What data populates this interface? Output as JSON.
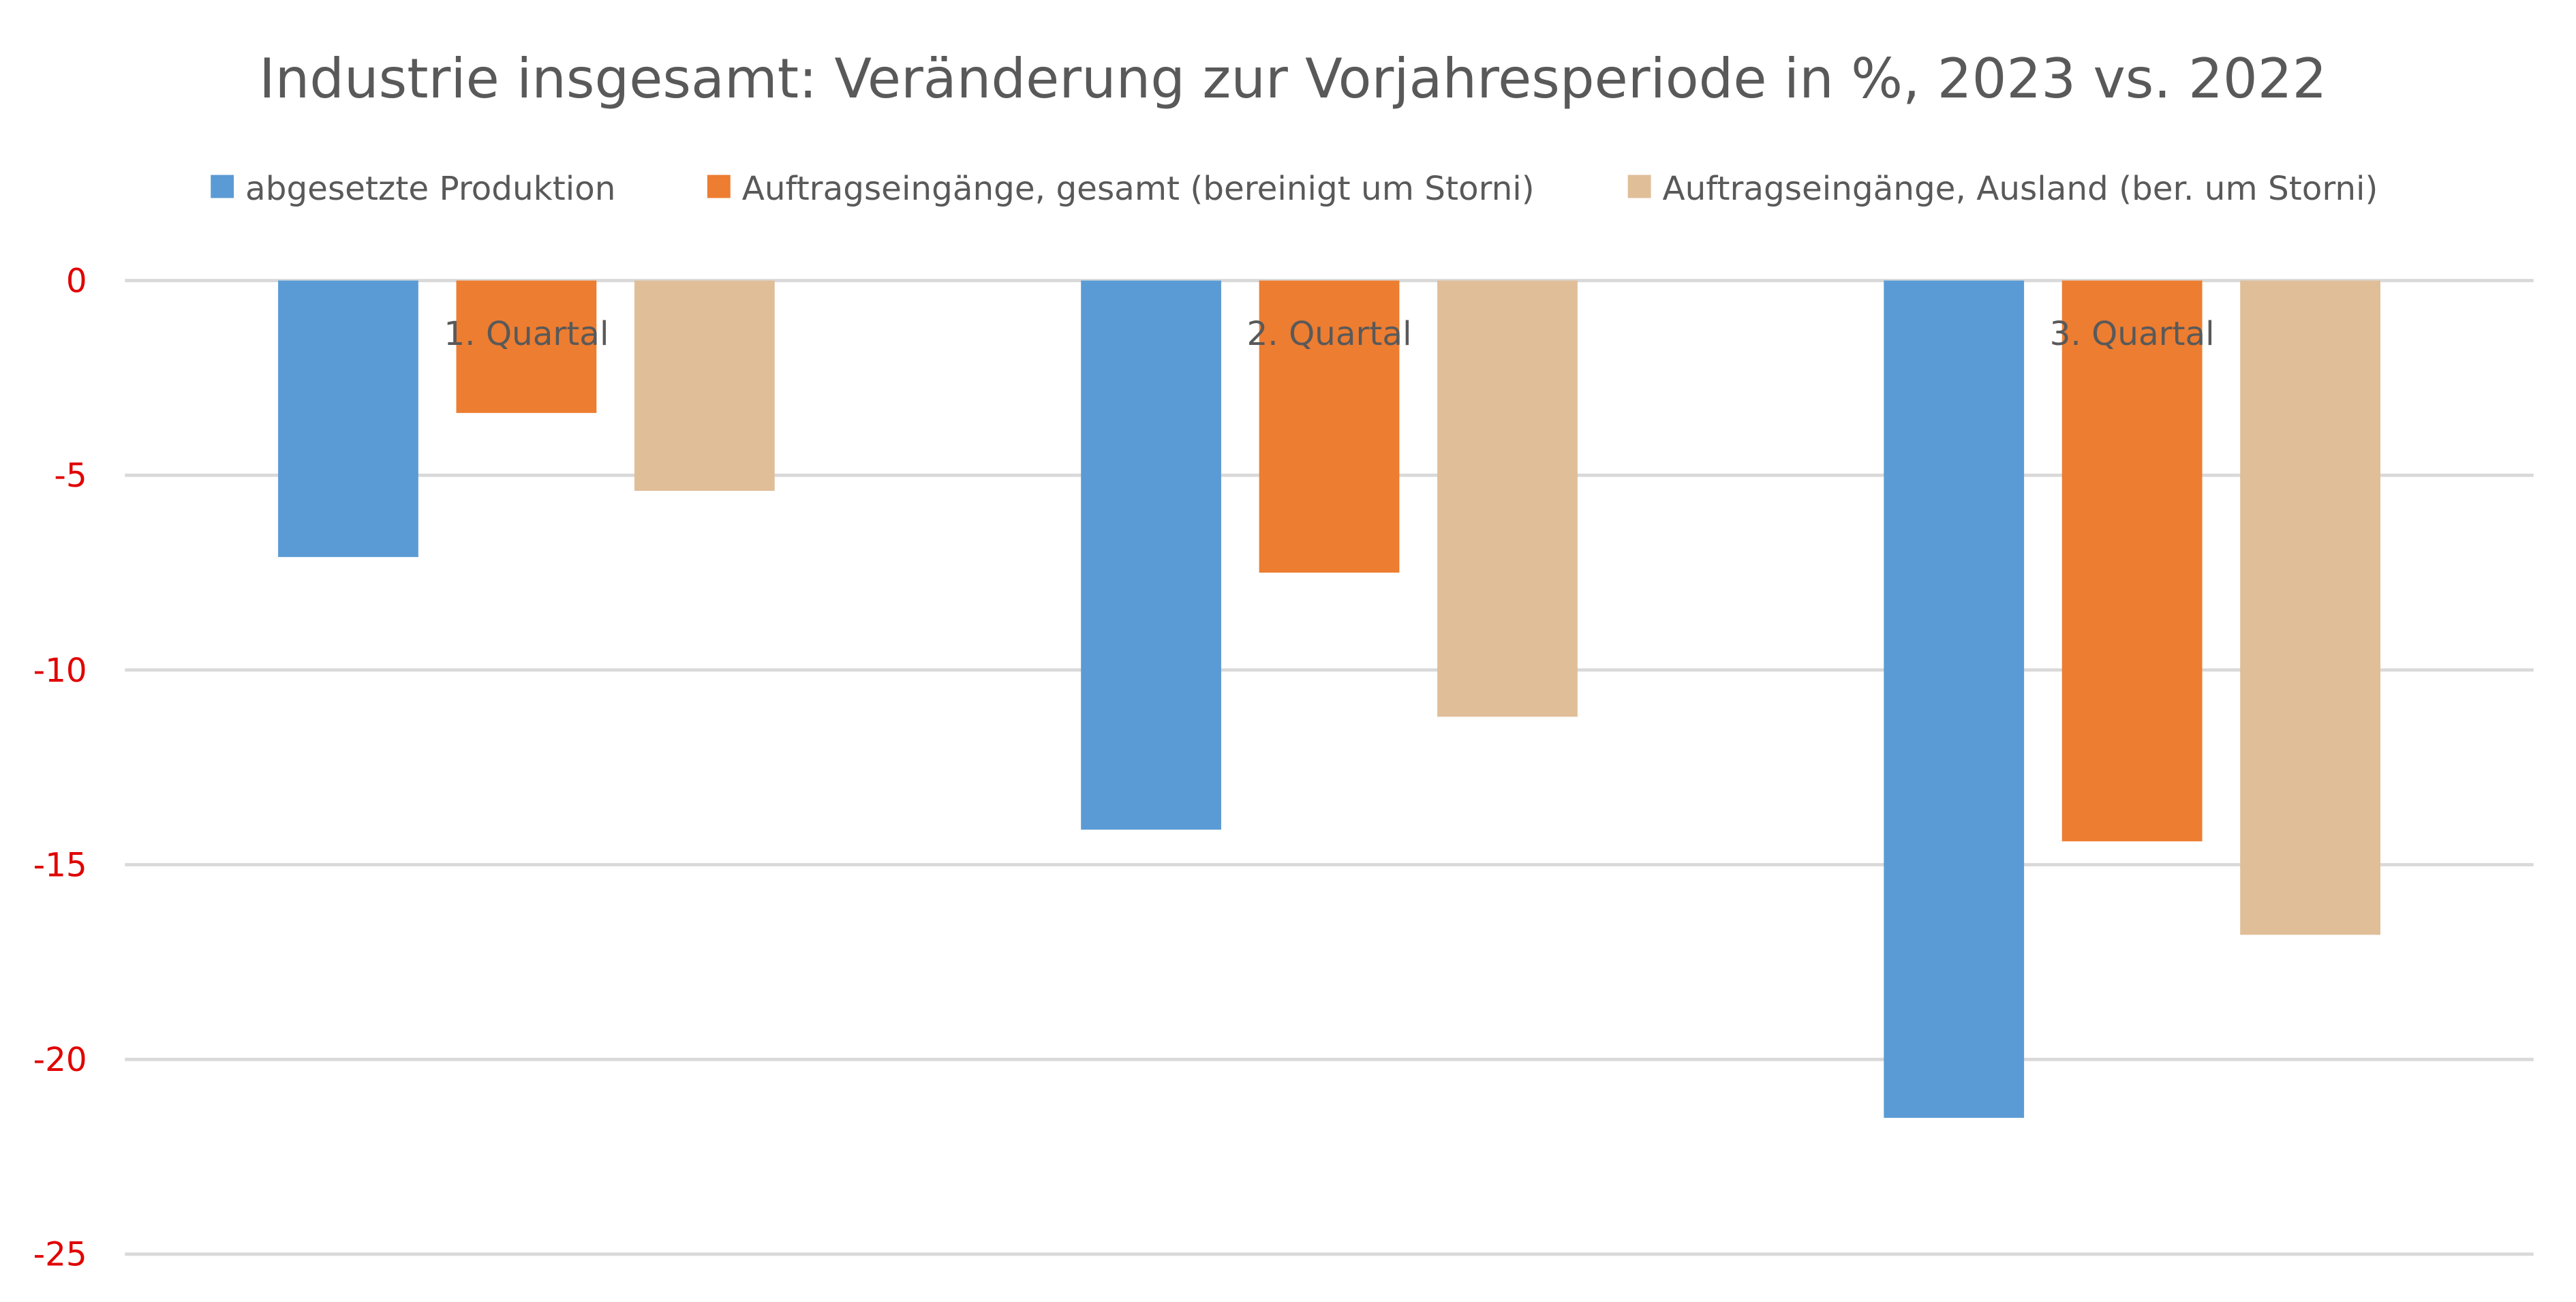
{
  "chart_data": {
    "type": "bar",
    "title": "Industrie insgesamt: Veränderung zur Vorjahresperiode in %, 2023 vs. 2022",
    "categories": [
      "1. Quartal",
      "2. Quartal",
      "3. Quartal"
    ],
    "series": [
      {
        "name": "abgesetzte Produktion",
        "color": "#5b9bd5",
        "values": [
          -7.1,
          -14.1,
          -21.5
        ]
      },
      {
        "name": "Auftragseingänge, gesamt (bereinigt um Storni)",
        "color": "#ed7d31",
        "values": [
          -3.4,
          -7.5,
          -14.4
        ]
      },
      {
        "name": "Auftragseingänge, Ausland (ber. um Storni)",
        "color": "#e0be98",
        "values": [
          -5.4,
          -11.2,
          -16.8
        ]
      }
    ],
    "ylim": [
      -25,
      0
    ],
    "yticks": [
      "0",
      "-5",
      "-10",
      "-15",
      "-20",
      "-25"
    ],
    "tick_color": "#e00000",
    "grid": true,
    "legend_position": "top"
  }
}
